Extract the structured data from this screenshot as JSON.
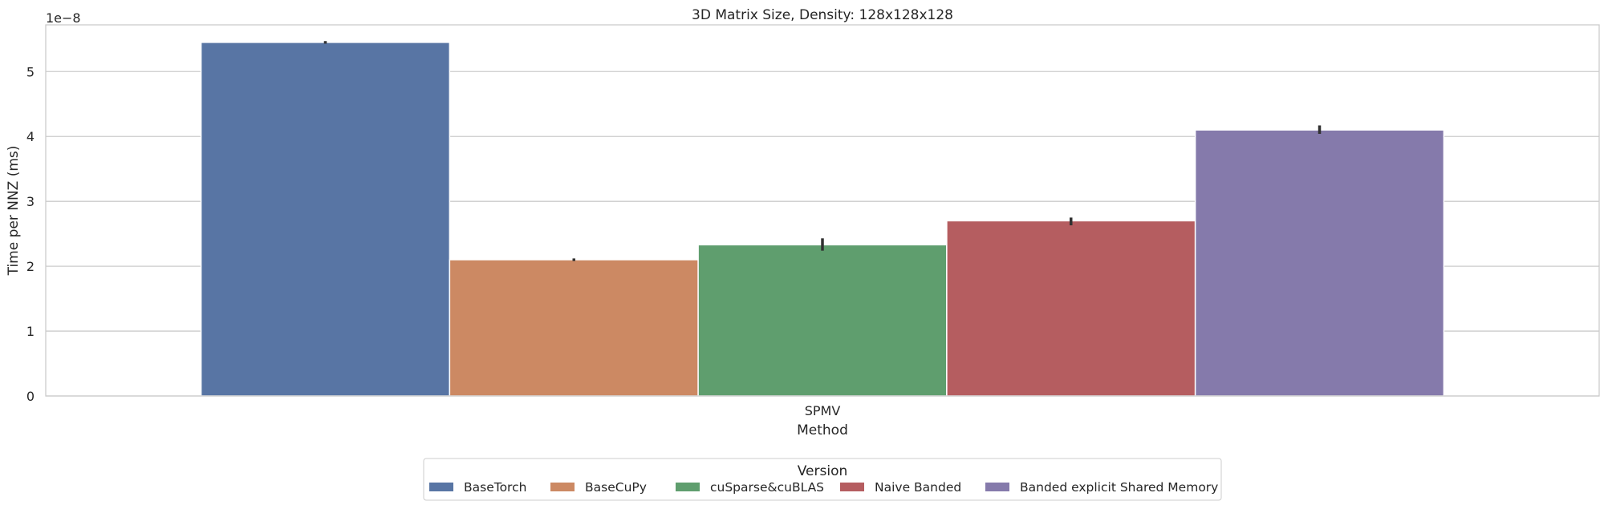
{
  "chart_data": {
    "type": "bar",
    "title": "3D Matrix Size, Density: 128x128x128",
    "xlabel": "Method",
    "ylabel": "Time per NNZ (ms)",
    "y_offset_label": "1e−8",
    "y_scale": 1e-08,
    "ylim": [
      0,
      5.72
    ],
    "yticks": [
      0,
      1,
      2,
      3,
      4,
      5
    ],
    "grid": true,
    "categories": [
      "SPMV"
    ],
    "legend": {
      "title": "Version",
      "placement": "bottom-center"
    },
    "series": [
      {
        "name": "BaseTorch",
        "color": "#5875a4",
        "values": [
          5.45
        ],
        "error": [
          5.43,
          5.47
        ]
      },
      {
        "name": "BaseCuPy",
        "color": "#cc8963",
        "values": [
          2.1
        ],
        "error": [
          2.08,
          2.12
        ]
      },
      {
        "name": "cuSparse&cuBLAS",
        "color": "#5f9e6e",
        "values": [
          2.33
        ],
        "error": [
          2.24,
          2.43
        ]
      },
      {
        "name": "Naive Banded",
        "color": "#b55d60",
        "values": [
          2.7
        ],
        "error": [
          2.63,
          2.75
        ]
      },
      {
        "name": "Banded explicit Shared Memory",
        "color": "#857aab",
        "values": [
          4.1
        ],
        "error": [
          4.04,
          4.17
        ]
      }
    ]
  }
}
